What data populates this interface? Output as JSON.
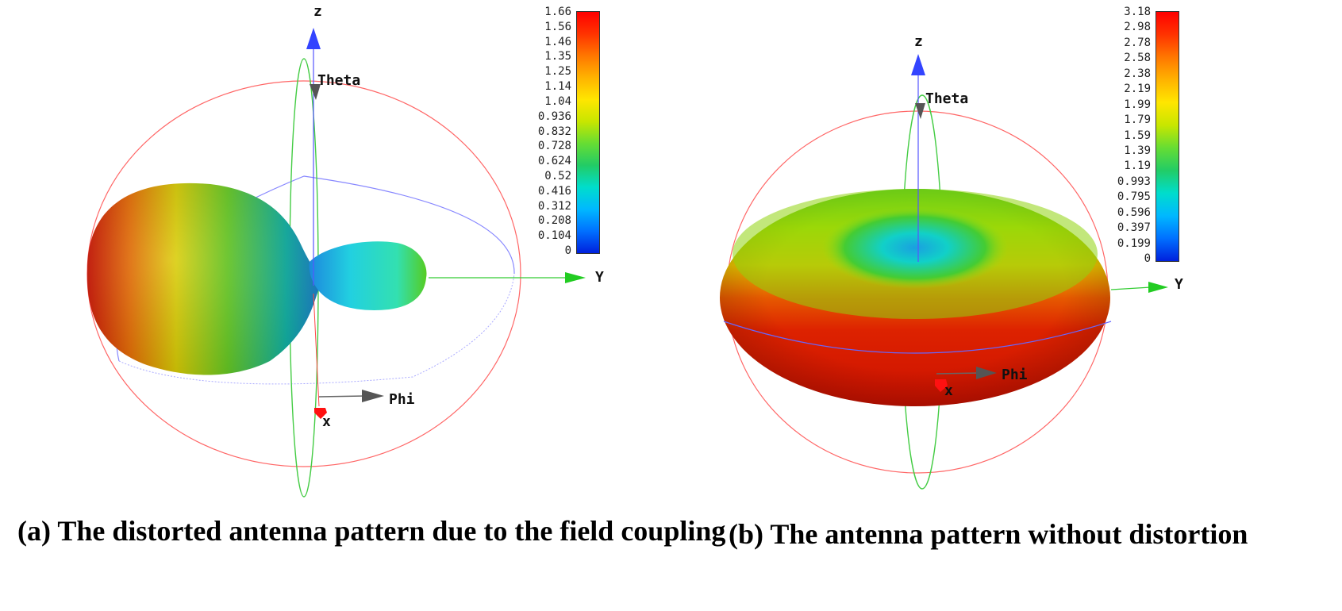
{
  "panel_a": {
    "caption": "(a) The distorted antenna pattern due to the field coupling",
    "axes": {
      "z": "z",
      "y": "Y",
      "x": "x",
      "theta": "Theta",
      "phi": "Phi"
    },
    "colorbar_ticks": [
      "1.66",
      "1.56",
      "1.46",
      "1.35",
      "1.25",
      "1.14",
      "1.04",
      "0.936",
      "0.832",
      "0.728",
      "0.624",
      "0.52",
      "0.416",
      "0.312",
      "0.208",
      "0.104",
      "0"
    ]
  },
  "panel_b": {
    "caption": "(b) The antenna pattern without distortion",
    "axes": {
      "z": "z",
      "y": "Y",
      "x": "x",
      "theta": "Theta",
      "phi": "Phi"
    },
    "colorbar_ticks": [
      "3.18",
      "2.98",
      "2.78",
      "2.58",
      "2.38",
      "2.19",
      "1.99",
      "1.79",
      "1.59",
      "1.39",
      "1.19",
      "0.993",
      "0.795",
      "0.596",
      "0.397",
      "0.199",
      "0"
    ]
  },
  "colors": {
    "colormap": [
      "#ff0000",
      "#ff4000",
      "#ff8000",
      "#ffbf00",
      "#e6e600",
      "#99e600",
      "#33cc33",
      "#00cc88",
      "#00e5e5",
      "#00aaff",
      "#0055ff",
      "#0000e0"
    ],
    "sphere_outline": "#ff5555",
    "green_ring": "#44cc44",
    "blue_ring": "#7777ff",
    "z_axis": "#3333ff",
    "y_axis": "#22cc22",
    "x_axis": "#ff2222",
    "marker": "#666666"
  }
}
